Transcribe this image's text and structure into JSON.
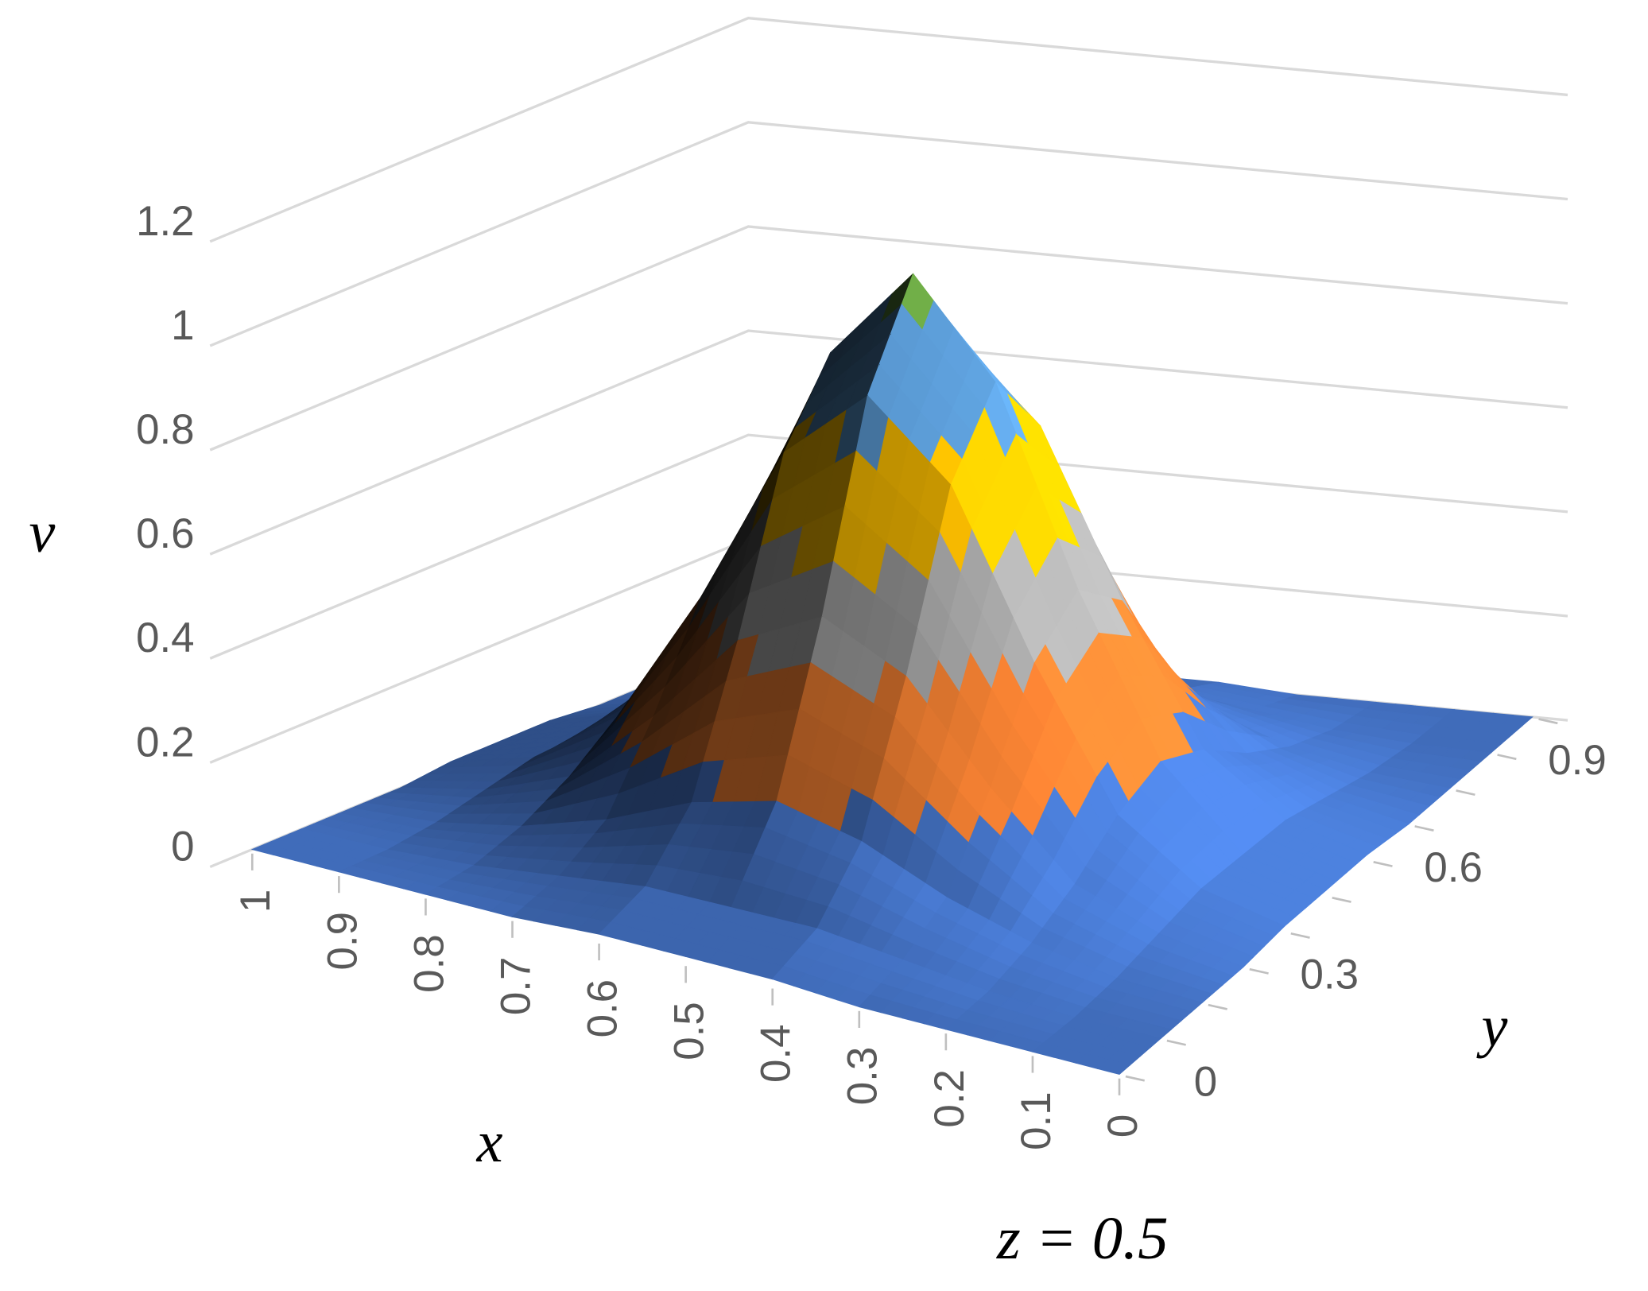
{
  "chart_data": {
    "type": "surface",
    "value_label": "v",
    "x_label": "x",
    "y_label": "y",
    "annotation": "z = 0.5",
    "x": [
      0,
      0.1,
      0.2,
      0.3,
      0.4,
      0.5,
      0.6,
      0.7,
      0.8,
      0.9,
      1
    ],
    "xlim": [
      0,
      1
    ],
    "y": [
      0,
      0.1,
      0.2,
      0.3,
      0.4,
      0.5,
      0.6,
      0.7,
      0.8,
      0.9,
      1
    ],
    "ylim": [
      0,
      1
    ],
    "yticks": [
      0,
      0.3,
      0.6,
      0.9
    ],
    "vlim": [
      0,
      1.2
    ],
    "vticks": [
      0,
      0.2,
      0.4,
      0.6,
      0.8,
      1,
      1.2
    ],
    "band_colors": [
      "#4472c4",
      "#ed7d31",
      "#a5a5a5",
      "#ffc000",
      "#5b9bd5",
      "#70ad47"
    ],
    "grid": true,
    "values": [
      [
        0,
        0,
        0,
        0,
        0.01,
        0.01,
        0.01,
        0,
        0,
        0,
        0
      ],
      [
        0,
        0,
        0.01,
        0.03,
        0.05,
        0.05,
        0.05,
        0.03,
        0.01,
        0,
        0
      ],
      [
        0,
        0.01,
        0.04,
        0.09,
        0.16,
        0.2,
        0.16,
        0.09,
        0.04,
        0.01,
        0
      ],
      [
        0,
        0.03,
        0.09,
        0.24,
        0.42,
        0.5,
        0.42,
        0.24,
        0.09,
        0.03,
        0
      ],
      [
        0.01,
        0.05,
        0.16,
        0.42,
        0.73,
        0.87,
        0.73,
        0.42,
        0.16,
        0.05,
        0.01
      ],
      [
        0.01,
        0.05,
        0.2,
        0.5,
        0.87,
        1.05,
        0.87,
        0.5,
        0.2,
        0.05,
        0.01
      ],
      [
        0.01,
        0.05,
        0.16,
        0.42,
        0.73,
        0.87,
        0.73,
        0.42,
        0.16,
        0.05,
        0.01
      ],
      [
        0,
        0.03,
        0.09,
        0.24,
        0.42,
        0.5,
        0.42,
        0.24,
        0.09,
        0.03,
        0
      ],
      [
        0,
        0.01,
        0.04,
        0.09,
        0.16,
        0.2,
        0.16,
        0.09,
        0.04,
        0.01,
        0
      ],
      [
        0,
        0,
        0.01,
        0.03,
        0.05,
        0.05,
        0.05,
        0.03,
        0.01,
        0,
        0
      ],
      [
        0,
        0,
        0,
        0,
        0.01,
        0.01,
        0.01,
        0,
        0,
        0,
        0
      ]
    ]
  }
}
